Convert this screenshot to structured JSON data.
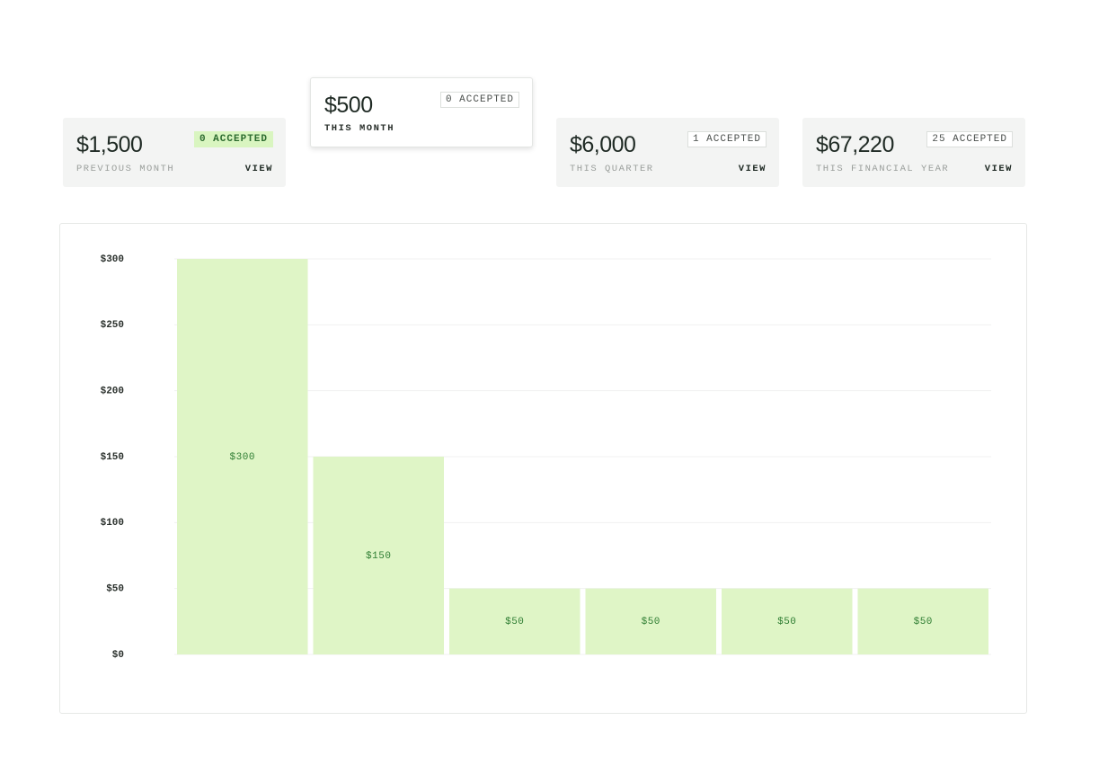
{
  "cards": [
    {
      "amount": "$1,500",
      "badge": "0 ACCEPTED",
      "label": "PREVIOUS MONTH",
      "action": "VIEW"
    },
    {
      "amount": "$500",
      "badge": "0 ACCEPTED",
      "label": "THIS MONTH"
    },
    {
      "amount": "$6,000",
      "badge": "1 ACCEPTED",
      "label": "THIS QUARTER",
      "action": "VIEW"
    },
    {
      "amount": "$67,220",
      "badge": "25 ACCEPTED",
      "label": "THIS FINANCIAL YEAR",
      "action": "VIEW"
    }
  ],
  "chart_data": {
    "type": "bar",
    "categories": [
      null,
      null,
      null,
      null,
      null,
      null
    ],
    "values": [
      300,
      150,
      50,
      50,
      50,
      50
    ],
    "value_labels": [
      "$300",
      "$150",
      "$50",
      "$50",
      "$50",
      "$50"
    ],
    "color": "#dff5c6",
    "ylim": [
      0,
      300
    ],
    "yticks": [
      {
        "value": 0,
        "label": "$0"
      },
      {
        "value": 50,
        "label": "$50"
      },
      {
        "value": 100,
        "label": "$100"
      },
      {
        "value": 150,
        "label": "$150"
      },
      {
        "value": 200,
        "label": "$200"
      },
      {
        "value": 250,
        "label": "$250"
      },
      {
        "value": 300,
        "label": "$300"
      }
    ],
    "grid": true
  }
}
